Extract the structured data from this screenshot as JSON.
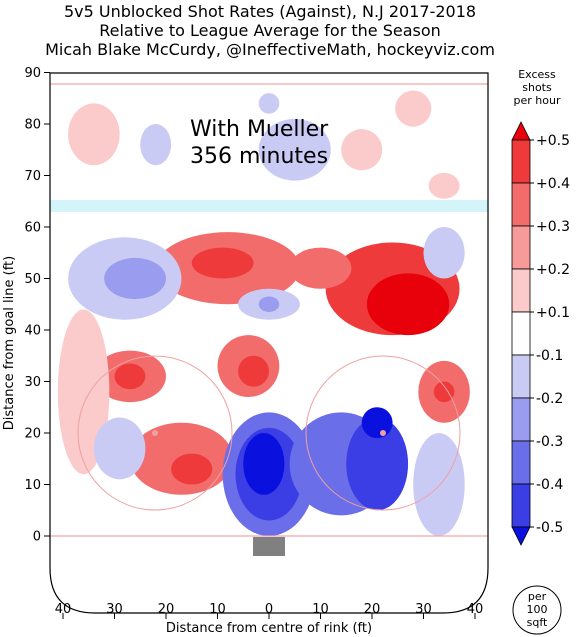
{
  "chart_data": {
    "type": "heatmap",
    "title_lines": [
      "5v5 Unblocked Shot Rates (Against), N.J 2017-2018",
      "Relative to League Average for the Season",
      "Micah Blake McCurdy, @IneffectiveMath, hockeyviz.com"
    ],
    "xlabel": "Distance from centre of rink (ft)",
    "ylabel": "Distance from goal line (ft)",
    "x_ticks": [
      40,
      30,
      20,
      10,
      0,
      10,
      20,
      30,
      40
    ],
    "y_ticks": [
      0,
      10,
      20,
      30,
      40,
      50,
      60,
      70,
      80,
      90
    ],
    "xlim": [
      -42.5,
      42.5
    ],
    "ylim": [
      -10,
      90
    ],
    "annotation_lines": [
      "With Mueller",
      "356 minutes"
    ],
    "colorbar": {
      "title_lines": [
        "Excess",
        "shots",
        "per hour"
      ],
      "labels": [
        "+0.5",
        "+0.4",
        "+0.3",
        "+0.2",
        "+0.1",
        "-0.1",
        "-0.2",
        "-0.3",
        "-0.4",
        "-0.5"
      ],
      "colors": [
        "#e8000b",
        "#ee3a3a",
        "#f36c6c",
        "#f79a9a",
        "#fbcaca",
        "#ffffff",
        "#cacbf5",
        "#9a9cef",
        "#6b6ee9",
        "#3a3ee4",
        "#0a10de"
      ]
    },
    "badge_lines": [
      "per",
      "100",
      "sqft"
    ],
    "blobs": [
      {
        "x": 24,
        "y": 48,
        "rx": 13,
        "ry": 9,
        "level": 4
      },
      {
        "x": 27,
        "y": 45,
        "rx": 8,
        "ry": 6,
        "level": 5
      },
      {
        "x": -8,
        "y": 52,
        "rx": 14,
        "ry": 7,
        "level": 3
      },
      {
        "x": -9,
        "y": 53,
        "rx": 6,
        "ry": 3,
        "level": 4
      },
      {
        "x": 10,
        "y": 52,
        "rx": 6,
        "ry": 4,
        "level": 3
      },
      {
        "x": -27,
        "y": 31,
        "rx": 7,
        "ry": 5,
        "level": 3
      },
      {
        "x": -27,
        "y": 31,
        "rx": 3,
        "ry": 2.5,
        "level": 4
      },
      {
        "x": -4,
        "y": 33,
        "rx": 6,
        "ry": 6,
        "level": 3
      },
      {
        "x": -3,
        "y": 32,
        "rx": 3,
        "ry": 3,
        "level": 4
      },
      {
        "x": -17,
        "y": 15,
        "rx": 10,
        "ry": 7,
        "level": 3
      },
      {
        "x": -15,
        "y": 13,
        "rx": 4,
        "ry": 3,
        "level": 4
      },
      {
        "x": 34,
        "y": 28,
        "rx": 5,
        "ry": 6,
        "level": 3
      },
      {
        "x": 34,
        "y": 28,
        "rx": 2,
        "ry": 2,
        "level": 4
      },
      {
        "x": -34,
        "y": 78,
        "rx": 5,
        "ry": 6,
        "level": 1
      },
      {
        "x": 28,
        "y": 83,
        "rx": 3.5,
        "ry": 3.5,
        "level": 1
      },
      {
        "x": 18,
        "y": 75,
        "rx": 4,
        "ry": 4,
        "level": 1
      },
      {
        "x": 34,
        "y": 68,
        "rx": 3,
        "ry": 2.5,
        "level": 1
      },
      {
        "x": -36,
        "y": 28,
        "rx": 5,
        "ry": 16,
        "level": 1
      },
      {
        "x": 0,
        "y": 12,
        "rx": 9,
        "ry": 12,
        "level": -3
      },
      {
        "x": 0,
        "y": 12,
        "rx": 6.5,
        "ry": 9,
        "level": -4
      },
      {
        "x": -1,
        "y": 14,
        "rx": 4,
        "ry": 6,
        "level": -5
      },
      {
        "x": 14,
        "y": 14,
        "rx": 10,
        "ry": 10,
        "level": -3
      },
      {
        "x": 21,
        "y": 14,
        "rx": 6,
        "ry": 9,
        "level": -4
      },
      {
        "x": 21,
        "y": 22,
        "rx": 3,
        "ry": 3,
        "level": -5
      },
      {
        "x": -28,
        "y": 50,
        "rx": 11,
        "ry": 8,
        "level": -1
      },
      {
        "x": -26,
        "y": 50,
        "rx": 6,
        "ry": 4,
        "level": -2
      },
      {
        "x": -22,
        "y": 76,
        "rx": 3,
        "ry": 4,
        "level": -1
      },
      {
        "x": 5,
        "y": 75,
        "rx": 7,
        "ry": 6,
        "level": -1
      },
      {
        "x": 0,
        "y": 84,
        "rx": 2,
        "ry": 2,
        "level": -1
      },
      {
        "x": 34,
        "y": 55,
        "rx": 4,
        "ry": 5,
        "level": -1
      },
      {
        "x": 0,
        "y": 45,
        "rx": 6,
        "ry": 3,
        "level": -1
      },
      {
        "x": 0,
        "y": 45,
        "rx": 2,
        "ry": 1.5,
        "level": -2
      },
      {
        "x": -29,
        "y": 17,
        "rx": 5,
        "ry": 6,
        "level": -1
      },
      {
        "x": 33,
        "y": 10,
        "rx": 5,
        "ry": 10,
        "level": -1
      }
    ]
  }
}
